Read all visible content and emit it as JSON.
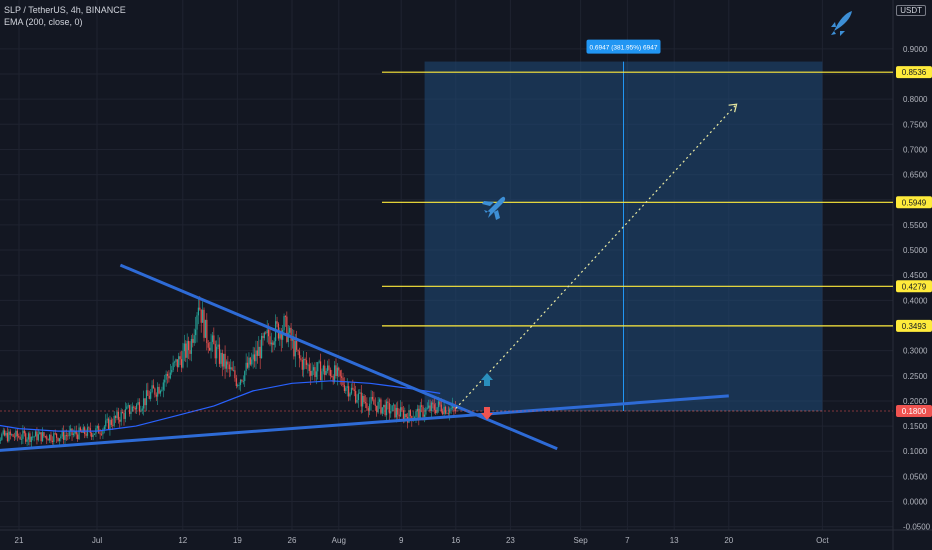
{
  "header": {
    "symbol_line": "SLP / TetherUS, 4h, BINANCE",
    "indicator_line": "EMA (200, close, 0)",
    "currency_badge": "USDT"
  },
  "colors": {
    "background": "#131722",
    "grid": "#1f2330",
    "axis_text": "#b2b5be",
    "candle_up": "#26a69a",
    "candle_down": "#ef5350",
    "ema": "#2962ff",
    "trendline": "#2e6bd6",
    "level_line": "#ffeb3b",
    "projection_box": "#1f4a78",
    "current_price_badge": "#ef5350"
  },
  "icons": {
    "rocket": "rocket-icon",
    "airplane": "airplane-icon",
    "up_arrow": "arrow-up-icon",
    "down_arrow": "arrow-down-icon"
  },
  "chart_data": {
    "type": "candlestick",
    "title": "",
    "xlabel": "",
    "ylabel": "",
    "ylim": [
      -0.06,
      0.95
    ],
    "y_ticks": [
      "0.9000",
      "0.8500",
      "0.8000",
      "0.7500",
      "0.7000",
      "0.6500",
      "0.6000",
      "0.5500",
      "0.5000",
      "0.4500",
      "0.4000",
      "0.3500",
      "0.3000",
      "0.2500",
      "0.2000",
      "0.1500",
      "0.1000",
      "0.0500",
      "0.0000",
      "-0.0500"
    ],
    "y_tick_values": [
      0.9,
      0.85,
      0.8,
      0.75,
      0.7,
      0.65,
      0.6,
      0.55,
      0.5,
      0.45,
      0.4,
      0.35,
      0.3,
      0.25,
      0.2,
      0.15,
      0.1,
      0.05,
      0.0,
      -0.05
    ],
    "x_ticks": [
      "21",
      "Jul",
      "12",
      "19",
      "26",
      "Aug",
      "9",
      "16",
      "23",
      "Sep",
      "7",
      "13",
      "20",
      "Oct"
    ],
    "x_tick_days": [
      -10,
      0,
      11,
      18,
      25,
      31,
      39,
      46,
      53,
      62,
      68,
      74,
      81,
      93
    ],
    "price_series": {
      "days": [
        -14,
        -10,
        -5,
        0,
        2,
        4,
        6,
        8,
        10,
        12,
        13,
        14,
        16,
        18,
        20,
        22,
        24,
        26,
        28,
        30,
        32,
        34,
        36,
        38,
        40,
        42,
        44,
        46
      ],
      "values": [
        0.13,
        0.13,
        0.13,
        0.14,
        0.16,
        0.18,
        0.2,
        0.23,
        0.27,
        0.31,
        0.4,
        0.33,
        0.28,
        0.24,
        0.28,
        0.33,
        0.35,
        0.28,
        0.26,
        0.26,
        0.23,
        0.2,
        0.19,
        0.18,
        0.17,
        0.18,
        0.19,
        0.18
      ]
    },
    "ema_series": {
      "days": [
        -14,
        -10,
        -5,
        0,
        5,
        10,
        15,
        20,
        25,
        30,
        35,
        40,
        44
      ],
      "values": [
        0.155,
        0.145,
        0.14,
        0.14,
        0.15,
        0.17,
        0.19,
        0.22,
        0.235,
        0.24,
        0.235,
        0.225,
        0.215
      ]
    },
    "levels": [
      {
        "label": "0.8536",
        "value": 0.8536
      },
      {
        "label": "0.5949",
        "value": 0.5949
      },
      {
        "label": "0.4279",
        "value": 0.4279
      },
      {
        "label": "0.3493",
        "value": 0.3493
      }
    ],
    "current_price": {
      "label": "0.1800",
      "value": 0.18
    },
    "projection": {
      "label": "0.6947 (381.95%) 6947",
      "start_day": 42,
      "end_day": 93,
      "low": 0.18,
      "high": 0.8747
    },
    "trendlines": [
      {
        "name": "descending",
        "from": {
          "day": 3,
          "value": 0.47
        },
        "to": {
          "day": 59,
          "value": 0.105
        }
      },
      {
        "name": "ascending",
        "from": {
          "day": -14,
          "value": 0.1
        },
        "to": {
          "day": 81,
          "value": 0.21
        }
      }
    ],
    "arrow_projection": {
      "from": {
        "day": 46,
        "value": 0.185
      },
      "to": {
        "day": 82,
        "value": 0.79
      }
    }
  }
}
